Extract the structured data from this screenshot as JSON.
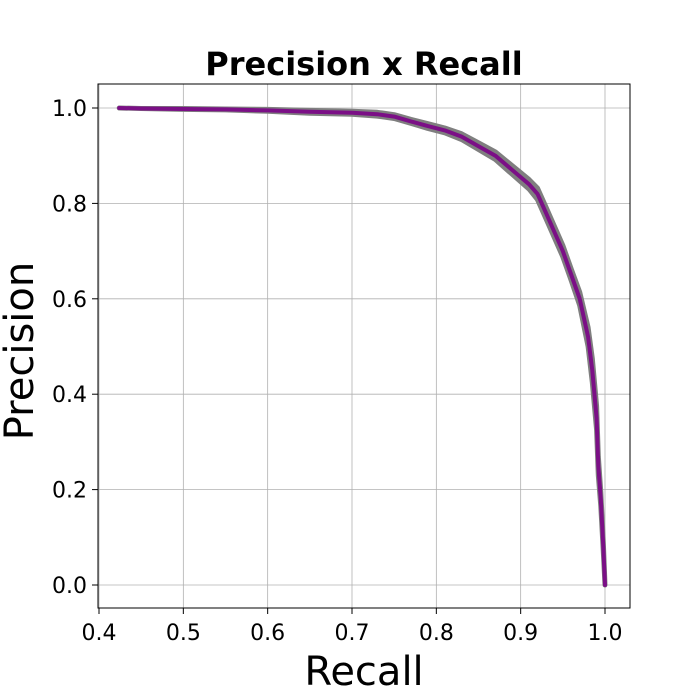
{
  "chart_data": {
    "type": "line",
    "title": "Precision x Recall",
    "xlabel": "Recall",
    "ylabel": "Precision",
    "xlim": [
      0.4,
      1.0
    ],
    "ylim": [
      0.0,
      1.0
    ],
    "xticks": [
      "0.4",
      "0.5",
      "0.6",
      "0.7",
      "0.8",
      "0.9",
      "1.0"
    ],
    "yticks": [
      "0.0",
      "0.2",
      "0.4",
      "0.6",
      "0.8",
      "1.0"
    ],
    "grid": true,
    "legend": false,
    "colors": {
      "line": "#7b0f86",
      "band": "#7f7f7f"
    },
    "series": [
      {
        "x": [
          0.424,
          0.45,
          0.5,
          0.55,
          0.6,
          0.65,
          0.7,
          0.73,
          0.75,
          0.77,
          0.79,
          0.81,
          0.83,
          0.85,
          0.87,
          0.89,
          0.91,
          0.92,
          0.93,
          0.94,
          0.95,
          0.96,
          0.97,
          0.98,
          0.985,
          0.99,
          0.992,
          0.995,
          0.998,
          1.0
        ],
        "y": [
          1.0,
          0.999,
          0.998,
          0.997,
          0.995,
          0.992,
          0.99,
          0.987,
          0.982,
          0.972,
          0.962,
          0.953,
          0.94,
          0.92,
          0.9,
          0.87,
          0.84,
          0.82,
          0.78,
          0.74,
          0.7,
          0.65,
          0.6,
          0.52,
          0.45,
          0.35,
          0.25,
          0.18,
          0.08,
          0.0
        ],
        "band": [
          0.0,
          0.0,
          0.001,
          0.001,
          0.002,
          0.003,
          0.003,
          0.004,
          0.004,
          0.004,
          0.005,
          0.005,
          0.006,
          0.007,
          0.008,
          0.009,
          0.01,
          0.012,
          0.012,
          0.012,
          0.012,
          0.012,
          0.014,
          0.02,
          0.025,
          0.025,
          0.02,
          0.015,
          0.01,
          0.0
        ]
      }
    ]
  }
}
